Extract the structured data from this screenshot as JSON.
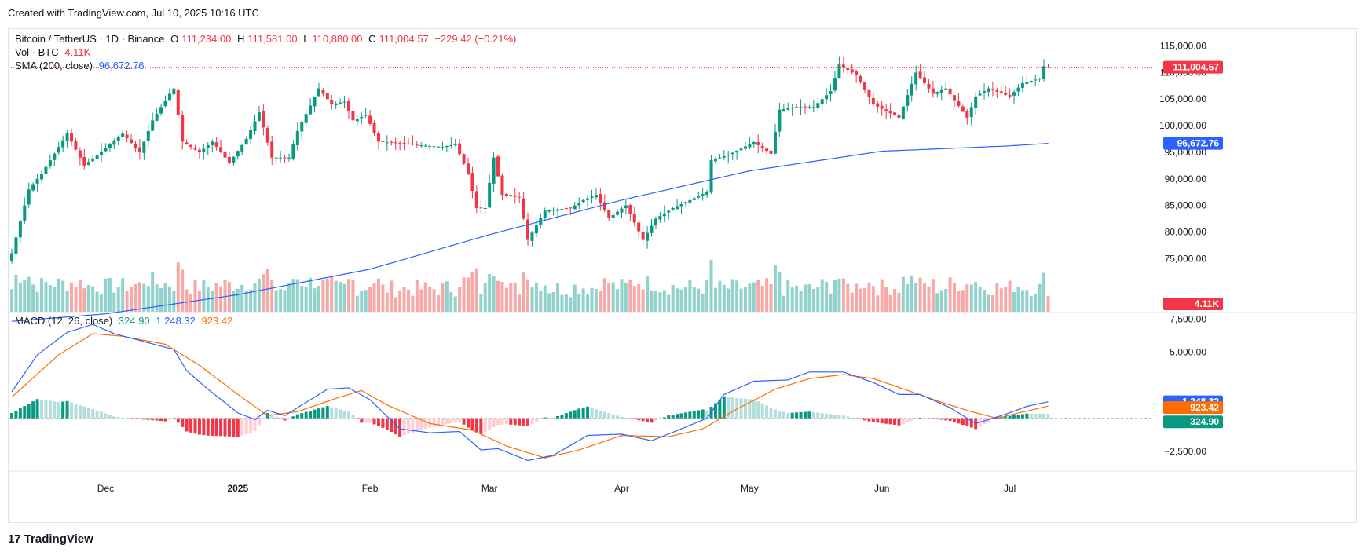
{
  "header": {
    "created": "Created with TradingView.com, Jul 10, 2025 10:16 UTC"
  },
  "legend": {
    "symbol": "Bitcoin / TetherUS · 1D · Binance",
    "open_label": "O",
    "open": "111,234.00",
    "high_label": "H",
    "high": "111,581.00",
    "low_label": "L",
    "low": "110,880.00",
    "close_label": "C",
    "close": "111,004.57",
    "change": "−229.42 (−0.21%)",
    "vol_label": "Vol · BTC",
    "vol": "4.11K",
    "sma_label": "SMA (200, close)",
    "sma": "96,672.76",
    "macd_label": "MACD (12, 26, close)",
    "macd_hist": "324.90",
    "macd_line": "1,248.32",
    "macd_signal": "923.42"
  },
  "footer": {
    "brand": "TradingView"
  },
  "colors": {
    "up": "#089981",
    "down": "#f23645",
    "up_vol": "#92d2cc",
    "down_vol": "#f7a9a7",
    "sma": "#2962ff",
    "macd": "#2962ff",
    "signal": "#ff6d00",
    "hist_up_strong": "#089981",
    "hist_up_weak": "#b2dfdb",
    "hist_down_strong": "#f23645",
    "hist_down_weak": "#ffcdd2",
    "grid": "#f0f3fa"
  },
  "chart_data": {
    "type": "candlestick",
    "title": "Bitcoin / TetherUS · 1D · Binance",
    "price_axis": {
      "ticks": [
        "75,000.00",
        "80,000.00",
        "85,000.00",
        "90,000.00",
        "95,000.00",
        "100,000.00",
        "105,000.00",
        "110,000.00",
        "115,000.00"
      ],
      "range": [
        65000,
        117000
      ]
    },
    "macd_axis": {
      "ticks": [
        "7,500.00",
        "5,000.00",
        "−2,500.00"
      ],
      "range": [
        -4000,
        8000
      ]
    },
    "x_axis": {
      "labels": [
        "Dec",
        "2025",
        "Feb",
        "Mar",
        "Apr",
        "May",
        "Jun",
        "Jul"
      ]
    },
    "price_keypoints": [
      [
        "Nov 9",
        76000
      ],
      [
        "Nov 13",
        88000
      ],
      [
        "Nov 16",
        91000
      ],
      [
        "Nov 22",
        98500
      ],
      [
        "Nov 26",
        92500
      ],
      [
        "Dec 2",
        96500
      ],
      [
        "Dec 5",
        98500
      ],
      [
        "Dec 9",
        95000
      ],
      [
        "Dec 12",
        101000
      ],
      [
        "Dec 16",
        106000
      ],
      [
        "Dec 17",
        107000
      ],
      [
        "Dec 19",
        97000
      ],
      [
        "Dec 23",
        95000
      ],
      [
        "Dec 26",
        97000
      ],
      [
        "Dec 30",
        93000
      ],
      [
        "Jan 3",
        97500
      ],
      [
        "Jan 6",
        102500
      ],
      [
        "Jan 9",
        94000
      ],
      [
        "Jan 13",
        94000
      ],
      [
        "Jan 15",
        99000
      ],
      [
        "Jan 20",
        107000
      ],
      [
        "Jan 23",
        104000
      ],
      [
        "Jan 26",
        104500
      ],
      [
        "Jan 28",
        101000
      ],
      [
        "Jan 31",
        102000
      ],
      [
        "Feb 3",
        97000
      ],
      [
        "Feb 10",
        96500
      ],
      [
        "Feb 18",
        96000
      ],
      [
        "Feb 21",
        96500
      ],
      [
        "Feb 24",
        91000
      ],
      [
        "Feb 26",
        84500
      ],
      [
        "Feb 28",
        84500
      ],
      [
        "Mar 2",
        94000
      ],
      [
        "Mar 4",
        87000
      ],
      [
        "Mar 8",
        86500
      ],
      [
        "Mar 10",
        78500
      ],
      [
        "Mar 14",
        84000
      ],
      [
        "Mar 20",
        84500
      ],
      [
        "Mar 23",
        86000
      ],
      [
        "Mar 26",
        87000
      ],
      [
        "Mar 29",
        82600
      ],
      [
        "Apr 2",
        85000
      ],
      [
        "Apr 6",
        78500
      ],
      [
        "Apr 9",
        82500
      ],
      [
        "Apr 13",
        84500
      ],
      [
        "Apr 21",
        87500
      ],
      [
        "Apr 22",
        93500
      ],
      [
        "Apr 26",
        94500
      ],
      [
        "May 2",
        96900
      ],
      [
        "May 6",
        94700
      ],
      [
        "May 8",
        103000
      ],
      [
        "May 12",
        103500
      ],
      [
        "May 16",
        103500
      ],
      [
        "May 20",
        106500
      ],
      [
        "May 22",
        111500
      ],
      [
        "May 26",
        109500
      ],
      [
        "May 30",
        104000
      ],
      [
        "Jun 5",
        101500
      ],
      [
        "Jun 9",
        110000
      ],
      [
        "Jun 13",
        106000
      ],
      [
        "Jun 16",
        107000
      ],
      [
        "Jun 21",
        101500
      ],
      [
        "Jun 23",
        105500
      ],
      [
        "Jun 26",
        107000
      ],
      [
        "Jul 1",
        105500
      ],
      [
        "Jul 4",
        108000
      ],
      [
        "Jul 8",
        108900
      ],
      [
        "Jul 9",
        111200
      ],
      [
        "Jul 10",
        111004.57
      ]
    ],
    "sma200": [
      [
        "Nov 9",
        63200
      ],
      [
        "Dec 1",
        64600
      ],
      [
        "Jan 1",
        68200
      ],
      [
        "Feb 1",
        73000
      ],
      [
        "Mar 1",
        79500
      ],
      [
        "Apr 1",
        86000
      ],
      [
        "May 1",
        91500
      ],
      [
        "Jun 1",
        95200
      ],
      [
        "Jul 1",
        96200
      ],
      [
        "Jul 10",
        96672.76
      ]
    ],
    "macd_line": [
      [
        "Nov 9",
        2000
      ],
      [
        "Nov 15",
        4800
      ],
      [
        "Nov 22",
        6500
      ],
      [
        "Nov 28",
        7100
      ],
      [
        "Dec 3",
        6400
      ],
      [
        "Dec 10",
        5800
      ],
      [
        "Dec 17",
        5200
      ],
      [
        "Dec 20",
        3600
      ],
      [
        "Dec 25",
        2200
      ],
      [
        "Jan 1",
        400
      ],
      [
        "Jan 5",
        -100
      ],
      [
        "Jan 8",
        600
      ],
      [
        "Jan 12",
        200
      ],
      [
        "Jan 17",
        1200
      ],
      [
        "Jan 22",
        2200
      ],
      [
        "Jan 27",
        2300
      ],
      [
        "Feb 1",
        1400
      ],
      [
        "Feb 8",
        -800
      ],
      [
        "Feb 15",
        -1100
      ],
      [
        "Feb 22",
        -1000
      ],
      [
        "Feb 27",
        -2400
      ],
      [
        "Mar 3",
        -2300
      ],
      [
        "Mar 10",
        -3200
      ],
      [
        "Mar 16",
        -2800
      ],
      [
        "Mar 24",
        -1300
      ],
      [
        "Apr 1",
        -1200
      ],
      [
        "Apr 8",
        -1700
      ],
      [
        "Apr 15",
        -800
      ],
      [
        "Apr 21",
        0
      ],
      [
        "Apr 25",
        1800
      ],
      [
        "May 2",
        2800
      ],
      [
        "May 10",
        2900
      ],
      [
        "May 15",
        3500
      ],
      [
        "May 23",
        3500
      ],
      [
        "May 30",
        2700
      ],
      [
        "Jun 5",
        1800
      ],
      [
        "Jun 10",
        1800
      ],
      [
        "Jun 17",
        800
      ],
      [
        "Jun 23",
        -400
      ],
      [
        "Jun 30",
        300
      ],
      [
        "Jul 5",
        900
      ],
      [
        "Jul 10",
        1248.32
      ]
    ],
    "macd_signal": [
      [
        "Nov 9",
        1600
      ],
      [
        "Nov 20",
        4800
      ],
      [
        "Nov 28",
        6400
      ],
      [
        "Dec 5",
        6200
      ],
      [
        "Dec 15",
        5600
      ],
      [
        "Dec 23",
        4000
      ],
      [
        "Jan 1",
        1800
      ],
      [
        "Jan 8",
        200
      ],
      [
        "Jan 15",
        500
      ],
      [
        "Jan 24",
        1500
      ],
      [
        "Jan 30",
        2100
      ],
      [
        "Feb 5",
        1000
      ],
      [
        "Feb 15",
        -400
      ],
      [
        "Feb 25",
        -900
      ],
      [
        "Mar 5",
        -2100
      ],
      [
        "Mar 14",
        -3000
      ],
      [
        "Mar 22",
        -2400
      ],
      [
        "Apr 1",
        -1300
      ],
      [
        "Apr 12",
        -1400
      ],
      [
        "Apr 20",
        -800
      ],
      [
        "Apr 28",
        700
      ],
      [
        "May 7",
        2200
      ],
      [
        "May 15",
        3000
      ],
      [
        "May 23",
        3300
      ],
      [
        "May 30",
        3000
      ],
      [
        "Jun 8",
        2000
      ],
      [
        "Jun 15",
        1200
      ],
      [
        "Jun 22",
        500
      ],
      [
        "Jun 28",
        0
      ],
      [
        "Jul 3",
        400
      ],
      [
        "Jul 10",
        923.42
      ]
    ],
    "macd_hist_last": 324.9,
    "volume_last": "4.11K"
  }
}
